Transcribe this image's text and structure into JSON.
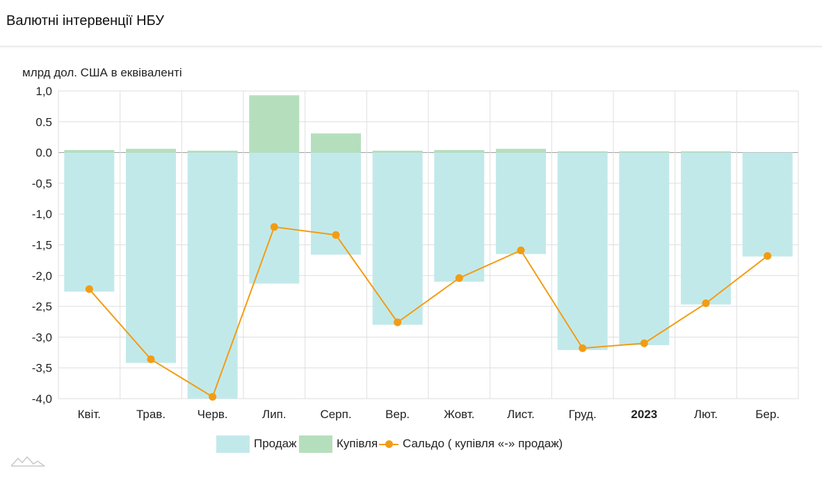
{
  "header": {
    "title": "Валютні інтервенції НБУ"
  },
  "chart_data": {
    "type": "bar",
    "title": "Валютні інтервенції НБУ",
    "ylabel": "млрд дол. США в еквіваленті",
    "ylim": [
      -4.0,
      1.0
    ],
    "y_ticks": [
      "1,0",
      "0.5",
      "0.0",
      "-0,5",
      "-1,0",
      "-1,5",
      "-2,0",
      "-2,5",
      "-3,0",
      "-3,5",
      "-4,0"
    ],
    "categories": [
      "Квіт.",
      "Трав.",
      "Черв.",
      "Лип.",
      "Серп.",
      "Вер.",
      "Жовт.",
      "Лист.",
      "Груд.",
      "2023",
      "Лют.",
      "Бер."
    ],
    "bold_categories": [
      "2023"
    ],
    "grid": true,
    "legend_position": "bottom",
    "series": [
      {
        "name": "Продаж",
        "type": "bar",
        "color": "#c2e9ea",
        "values": [
          -2.26,
          -3.42,
          -4.0,
          -2.13,
          -1.66,
          -2.8,
          -2.1,
          -1.65,
          -3.21,
          -3.13,
          -2.47,
          -1.69
        ]
      },
      {
        "name": "Купівля",
        "type": "bar",
        "color": "#b5dfbc",
        "values": [
          0.04,
          0.06,
          0.03,
          0.93,
          0.31,
          0.03,
          0.04,
          0.06,
          0.02,
          0.02,
          0.02,
          0.0
        ]
      },
      {
        "name": "Сальдо ( купівля «-» продаж)",
        "type": "line",
        "color": "#f39c12",
        "values": [
          -2.22,
          -3.36,
          -3.97,
          -1.21,
          -1.34,
          -2.76,
          -2.04,
          -1.59,
          -3.18,
          -3.1,
          -2.45,
          -1.68
        ]
      }
    ]
  }
}
